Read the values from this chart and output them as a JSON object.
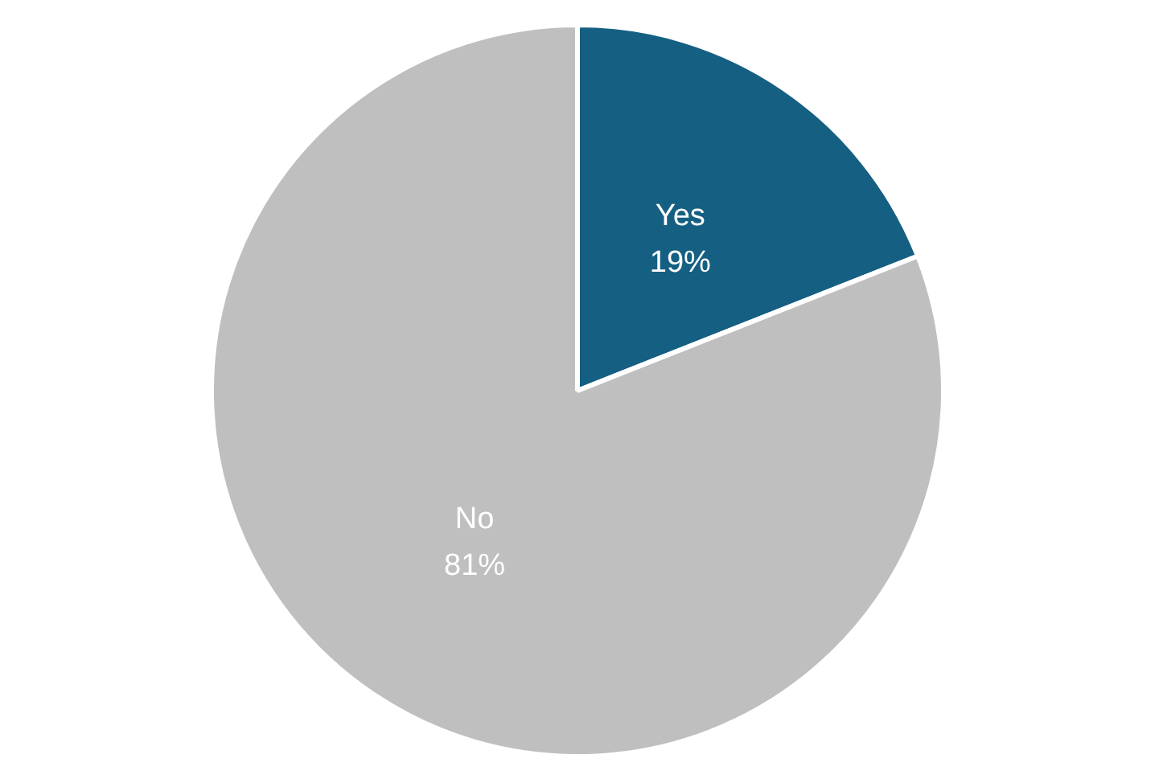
{
  "chart_data": {
    "type": "pie",
    "categories": [
      "Yes",
      "No"
    ],
    "values": [
      19,
      81
    ],
    "colors": [
      "#155f82",
      "#bfbfbf"
    ],
    "value_labels": [
      "19%",
      "81%"
    ],
    "legend": false
  }
}
